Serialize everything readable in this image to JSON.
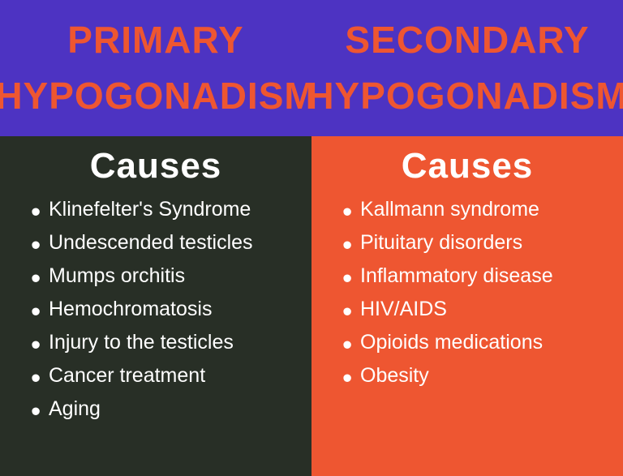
{
  "colors": {
    "header_bg": "#4d33c2",
    "header_text": "#ee5631",
    "left_body_bg": "#282f26",
    "left_body_text": "#ffffff",
    "right_body_bg": "#ee5631",
    "right_body_text": "#ffffff",
    "subheader_text": "#ffffff"
  },
  "typography": {
    "header_fontsize": 46,
    "subheader_fontsize": 44,
    "list_fontsize": 25
  },
  "left": {
    "title": "PRIMARY HYPOGONADISM",
    "subheader": "Causes",
    "items": [
      "Klinefelter's Syndrome",
      "Undescended testicles",
      "Mumps orchitis",
      "Hemochromatosis",
      "Injury to the testicles",
      "Cancer treatment",
      "Aging"
    ]
  },
  "right": {
    "title": "SECONDARY HYPOGONADISM",
    "subheader": "Causes",
    "items": [
      "Kallmann syndrome",
      "Pituitary disorders",
      "Inflammatory disease",
      "HIV/AIDS",
      "Opioids medications",
      "Obesity"
    ]
  }
}
